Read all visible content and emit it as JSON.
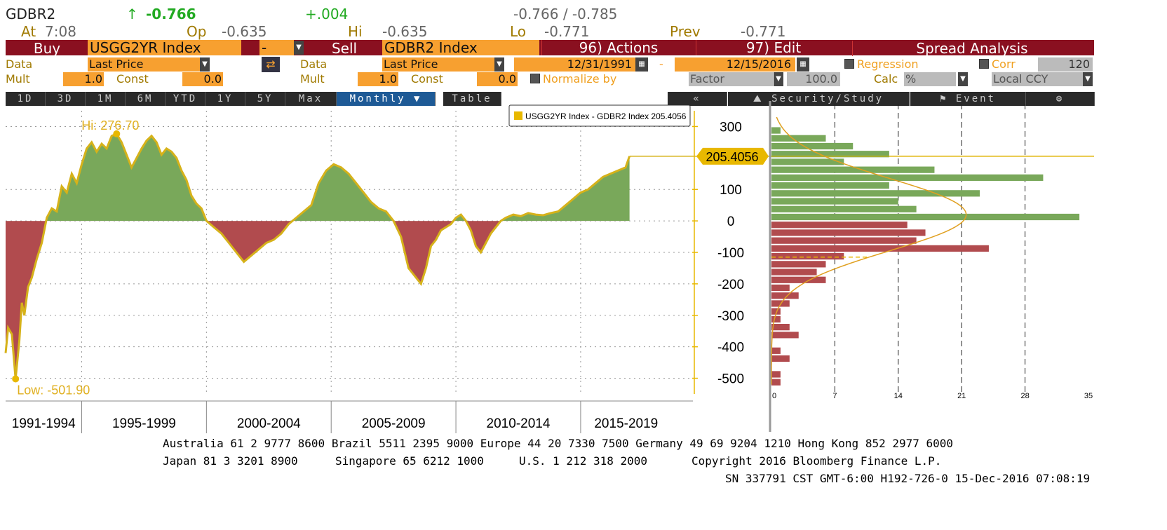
{
  "header": {
    "ticker": "GDBR2",
    "arrow": "↑",
    "last": "-0.766",
    "change": "+.004",
    "bid_ask": "-0.766 / -0.785",
    "at_label": "At",
    "time": "7:08",
    "op_label": "Op",
    "op": "-0.635",
    "hi_label": "Hi",
    "hi": "-0.635",
    "lo_label": "Lo",
    "lo": "-0.771",
    "prev_label": "Prev",
    "prev": "-0.771"
  },
  "toolbar": {
    "buy": "Buy",
    "security1": "USGG2YR Index",
    "op": "-",
    "sell": "Sell",
    "security2": "GDBR2 Index",
    "actions": "96) Actions",
    "edit": "97) Edit",
    "spread": "Spread Analysis"
  },
  "row2": {
    "data_label": "Data",
    "data_value": "Last Price",
    "data2_label": "Data",
    "data2_value": "Last Price",
    "start_date": "12/31/1991",
    "dash": "-",
    "end_date": "12/15/2016",
    "regression": "Regression",
    "corr": "Corr",
    "corr_value": "120"
  },
  "row3": {
    "mult_label": "Mult",
    "mult_value": "1.0",
    "const_label": "Const",
    "const_value": "0.0",
    "mult2_label": "Mult",
    "mult2_value": "1.0",
    "const2_label": "Const",
    "const2_value": "0.0",
    "normalize": "Normalize by",
    "factor": "Factor",
    "factor_value": "100.0",
    "calc_label": "Calc",
    "calc_value": "%",
    "ccy": "Local CCY"
  },
  "periods": [
    "1D",
    "3D",
    "1M",
    "6M",
    "YTD",
    "1Y",
    "5Y",
    "Max"
  ],
  "freq": "Monthly ▼",
  "table_btn": "Table",
  "back_btn": "«",
  "security_study": "Security/Study",
  "event": "Event",
  "gear": "⚙",
  "colors": {
    "positive": "#79a85a",
    "negative": "#b14b4e",
    "line": "#d6b21a",
    "accent": "#e8b800",
    "brand_red": "#8a1020",
    "field_orange": "#f7a030"
  },
  "chart_data": [
    {
      "type": "area",
      "legend": "USGG2YR Index - GDBR2 Index 205.4056",
      "last_value_label": "205.4056",
      "hi_label": "Hi: 276.70",
      "low_label": "Low: -501.90",
      "ylim": [
        -550,
        350
      ],
      "yticks": [
        300,
        100,
        0,
        -100,
        -200,
        -300,
        -400,
        -500
      ],
      "ytick_labels": [
        "300",
        "100",
        "0",
        "-100",
        "-200",
        "-300",
        "-400",
        "-500"
      ],
      "xlim": [
        1991.95,
        2019.5
      ],
      "x_categories": [
        "1991-1994",
        "1995-1999",
        "2000-2004",
        "2005-2009",
        "2010-2014",
        "2015-2019"
      ],
      "x_boundaries": [
        1995.0,
        2000.0,
        2005.0,
        2010.0,
        2015.0
      ],
      "x_end": 2016.96,
      "series": [
        {
          "x": [
            1991.95,
            1992.05,
            1992.2,
            1992.35,
            1992.5,
            1992.6,
            1992.7,
            1992.85,
            1993.0,
            1993.2,
            1993.4,
            1993.6,
            1993.8,
            1994.0,
            1994.2,
            1994.4,
            1994.6,
            1994.8,
            1995.0,
            1995.2,
            1995.4,
            1995.6,
            1995.8,
            1996.0,
            1996.2,
            1996.4,
            1996.6,
            1996.8,
            1997.0,
            1997.2,
            1997.4,
            1997.6,
            1997.8,
            1998.0,
            1998.2,
            1998.4,
            1998.6,
            1998.8,
            1999.0,
            1999.2,
            1999.4,
            1999.6,
            1999.8,
            2000.0,
            2000.3,
            2000.6,
            2000.9,
            2001.2,
            2001.5,
            2001.8,
            2002.1,
            2002.4,
            2002.7,
            2003.0,
            2003.3,
            2003.6,
            2003.9,
            2004.2,
            2004.5,
            2004.8,
            2005.1,
            2005.4,
            2005.7,
            2006.0,
            2006.3,
            2006.6,
            2006.9,
            2007.2,
            2007.5,
            2007.8,
            2008.1,
            2008.4,
            2008.6,
            2008.8,
            2009.0,
            2009.2,
            2009.4,
            2009.6,
            2009.8,
            2010.0,
            2010.2,
            2010.4,
            2010.6,
            2010.8,
            2011.0,
            2011.2,
            2011.4,
            2011.6,
            2011.8,
            2012.0,
            2012.3,
            2012.6,
            2012.9,
            2013.2,
            2013.5,
            2013.8,
            2014.1,
            2014.4,
            2014.7,
            2015.0,
            2015.3,
            2015.6,
            2015.9,
            2016.2,
            2016.5,
            2016.8,
            2016.96
          ],
          "y": [
            -420,
            -340,
            -360,
            -502,
            -380,
            -260,
            -300,
            -210,
            -180,
            -120,
            -70,
            10,
            40,
            30,
            110,
            90,
            150,
            120,
            180,
            230,
            250,
            220,
            245,
            230,
            270,
            276.7,
            250,
            210,
            170,
            200,
            230,
            255,
            270,
            250,
            210,
            230,
            220,
            200,
            160,
            130,
            80,
            55,
            40,
            0,
            -20,
            -40,
            -70,
            -100,
            -130,
            -110,
            -90,
            -70,
            -60,
            -40,
            -10,
            10,
            30,
            50,
            120,
            160,
            180,
            170,
            150,
            120,
            90,
            60,
            40,
            30,
            0,
            -50,
            -150,
            -180,
            -200,
            -150,
            -80,
            -60,
            -30,
            -20,
            -10,
            10,
            20,
            0,
            -30,
            -80,
            -100,
            -70,
            -40,
            -20,
            0,
            10,
            20,
            15,
            25,
            20,
            18,
            25,
            30,
            50,
            70,
            90,
            100,
            120,
            140,
            150,
            160,
            170,
            205.4
          ]
        }
      ]
    },
    {
      "type": "bar",
      "orientation": "horizontal",
      "xlim": [
        0,
        35
      ],
      "xticks": [
        0,
        7,
        14,
        21,
        28,
        35
      ],
      "xtick_labels": [
        "0",
        "7",
        "14",
        "21",
        "28",
        "35"
      ],
      "bin_width": 25,
      "bins": [
        {
          "y": 287.5,
          "count": 1
        },
        {
          "y": 262.5,
          "count": 6
        },
        {
          "y": 237.5,
          "count": 9
        },
        {
          "y": 212.5,
          "count": 13
        },
        {
          "y": 187.5,
          "count": 8
        },
        {
          "y": 162.5,
          "count": 18
        },
        {
          "y": 137.5,
          "count": 30
        },
        {
          "y": 112.5,
          "count": 13
        },
        {
          "y": 87.5,
          "count": 23
        },
        {
          "y": 62.5,
          "count": 14
        },
        {
          "y": 37.5,
          "count": 16
        },
        {
          "y": 12.5,
          "count": 34
        },
        {
          "y": -12.5,
          "count": 15
        },
        {
          "y": -37.5,
          "count": 17
        },
        {
          "y": -62.5,
          "count": 16
        },
        {
          "y": -87.5,
          "count": 24
        },
        {
          "y": -112.5,
          "count": 8
        },
        {
          "y": -137.5,
          "count": 6
        },
        {
          "y": -162.5,
          "count": 5
        },
        {
          "y": -187.5,
          "count": 6
        },
        {
          "y": -212.5,
          "count": 2
        },
        {
          "y": -237.5,
          "count": 3
        },
        {
          "y": -262.5,
          "count": 2
        },
        {
          "y": -287.5,
          "count": 1
        },
        {
          "y": -312.5,
          "count": 1
        },
        {
          "y": -337.5,
          "count": 2
        },
        {
          "y": -362.5,
          "count": 3
        },
        {
          "y": -412.5,
          "count": 1
        },
        {
          "y": -437.5,
          "count": 2
        },
        {
          "y": -487.5,
          "count": 1
        },
        {
          "y": -512.5,
          "count": 1
        }
      ],
      "mean_line_y": 205.4,
      "minus_sd_line_y": -115
    }
  ],
  "footer": {
    "line1": "Australia 61 2 9777 8600 Brazil 5511 2395 9000 Europe 44 20 7330 7500 Germany 49 69 9204 1210 Hong Kong 852 2977 6000",
    "line2_a": "Japan 81 3 3201 8900",
    "line2_b": "Singapore 65 6212 1000",
    "line2_c": "U.S. 1 212 318 2000",
    "line2_d": "Copyright 2016 Bloomberg Finance L.P.",
    "line3": "SN 337791 CST  GMT-6:00 H192-726-0 15-Dec-2016 07:08:19"
  }
}
